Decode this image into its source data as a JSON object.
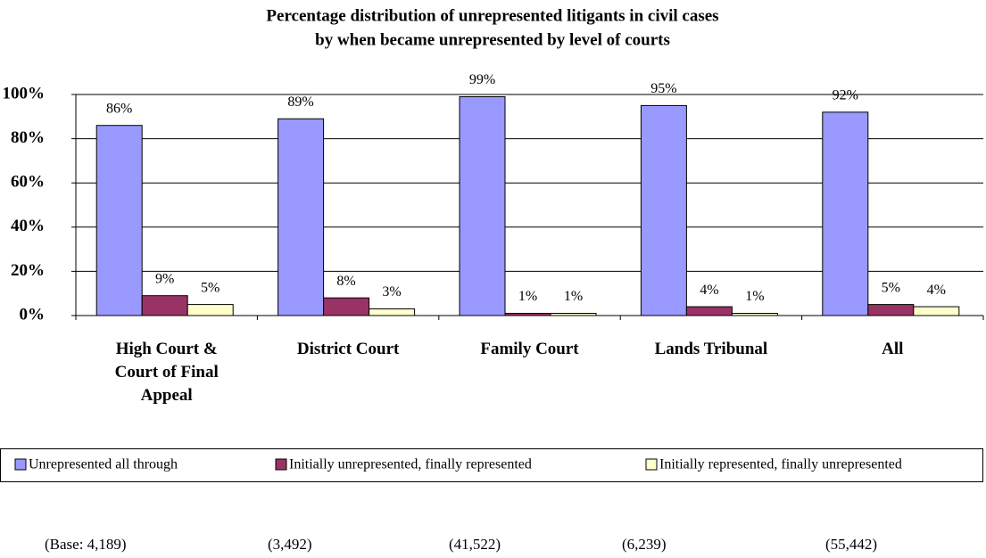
{
  "chart_data": {
    "type": "bar",
    "title": [
      "Percentage distribution of unrepresented litigants in civil cases",
      "by when became unrepresented by level of courts"
    ],
    "categories": [
      "High Court & Court of Final Appeal",
      "District Court",
      "Family Court",
      "Lands Tribunal",
      "All"
    ],
    "series": [
      {
        "name": "Unrepresented all through",
        "color": "#9999ff",
        "values": [
          86,
          89,
          99,
          95,
          92
        ],
        "value_labels": [
          "86%",
          "89%",
          "99%",
          "95%",
          "92%"
        ]
      },
      {
        "name": "Initially unrepresented, finally represented",
        "color": "#993366",
        "values": [
          9,
          8,
          1,
          4,
          5
        ],
        "value_labels": [
          "9%",
          "8%",
          "1%",
          "4%",
          "5%"
        ]
      },
      {
        "name": "Initially represented, finally unrepresented",
        "color": "#ffffcc",
        "values": [
          5,
          3,
          1,
          1,
          4
        ],
        "value_labels": [
          "5%",
          "3%",
          "1%",
          "1%",
          "4%"
        ]
      }
    ],
    "ylim": [
      0,
      100
    ],
    "yticks": [
      {
        "value": 0,
        "label": "0%"
      },
      {
        "value": 20,
        "label": "20%"
      },
      {
        "value": 40,
        "label": "40%"
      },
      {
        "value": 60,
        "label": "60%"
      },
      {
        "value": 80,
        "label": "80%"
      },
      {
        "value": 100,
        "label": "100%"
      }
    ],
    "grid": true,
    "legend": "bottom",
    "base_labels": [
      "(Base: 4,189)",
      "(3,492)",
      "(41,522)",
      "(6,239)",
      "(55,442)"
    ]
  }
}
